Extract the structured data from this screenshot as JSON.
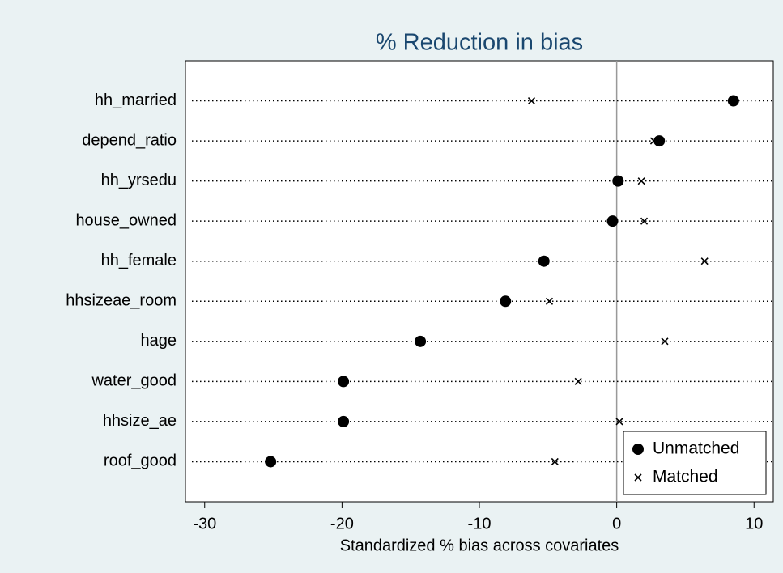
{
  "chart_data": {
    "type": "dot",
    "title": "% Reduction in bias",
    "x_label": "Standardized % bias across covariates",
    "categories": [
      "hh_married",
      "depend_ratio",
      "hh_yrsedu",
      "house_owned",
      "hh_female",
      "hhsizeae_room",
      "hage",
      "water_good",
      "hhsize_ae",
      "roof_good"
    ],
    "series": [
      {
        "name": "Unmatched",
        "color": "#000000",
        "marker": "circle",
        "values": [
          8.5,
          3.1,
          0.1,
          -0.3,
          -5.3,
          -8.1,
          -14.3,
          -19.9,
          -19.9,
          -25.2
        ]
      },
      {
        "name": "Matched",
        "color": "#000000",
        "marker": "x",
        "values": [
          -6.2,
          2.7,
          1.8,
          2.0,
          6.4,
          -4.9,
          3.5,
          -2.8,
          0.2,
          -4.5
        ]
      }
    ],
    "xlim": [
      -31.4,
      11.4
    ],
    "xticks": [
      -30,
      -20,
      -10,
      0,
      10
    ],
    "xline": 0,
    "legend": "bottom right"
  }
}
